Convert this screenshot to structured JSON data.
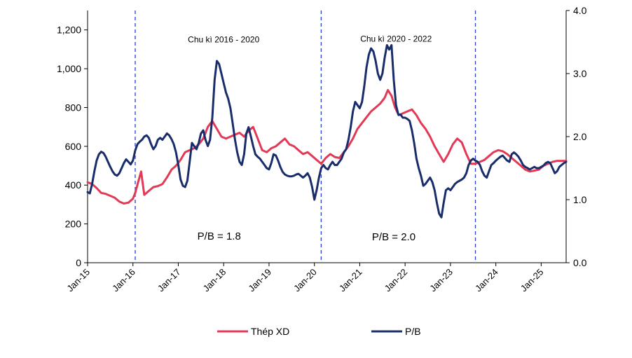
{
  "chart_data": {
    "type": "line",
    "title": "",
    "xlabel": "",
    "ylabel": "",
    "y_left": {
      "lim": [
        0,
        1300
      ],
      "ticks": [
        "0",
        "200",
        "400",
        "600",
        "800",
        "1,000",
        "1,200"
      ],
      "tick_values": [
        0,
        200,
        400,
        600,
        800,
        1000,
        1200
      ]
    },
    "y_right": {
      "lim": [
        0,
        4.0
      ],
      "ticks": [
        "0.0",
        "1.0",
        "2.0",
        "3.0",
        "4.0"
      ],
      "tick_values": [
        0,
        1,
        2,
        3,
        4
      ]
    },
    "x_range": [
      2015.0,
      2025.55
    ],
    "x_ticks": [
      {
        "label": "Jan-15",
        "value": 2015
      },
      {
        "label": "Jan-16",
        "value": 2016
      },
      {
        "label": "Jan-17",
        "value": 2017
      },
      {
        "label": "Jan-18",
        "value": 2018
      },
      {
        "label": "Jan-19",
        "value": 2019
      },
      {
        "label": "Jan-20",
        "value": 2020
      },
      {
        "label": "Jan-21",
        "value": 2021
      },
      {
        "label": "Jan-22",
        "value": 2022
      },
      {
        "label": "Jan-23",
        "value": 2023
      },
      {
        "label": "Jan-24",
        "value": 2024
      },
      {
        "label": "Jan-25",
        "value": 2025
      }
    ],
    "vlines": [
      {
        "name": "cycle-boundary-2016",
        "x": 2016.05
      },
      {
        "name": "cycle-boundary-2020",
        "x": 2020.15
      },
      {
        "name": "cycle-boundary-2023",
        "x": 2023.55
      }
    ],
    "annotations": [
      {
        "name": "cycle-label-2016-2020",
        "text": "Chu kì 2016 - 2020",
        "x": 2018.0,
        "y_left": 1135,
        "size": "small"
      },
      {
        "name": "cycle-label-2020-2022",
        "text": "Chu kì 2020 - 2022",
        "x": 2021.8,
        "y_left": 1140,
        "size": "small"
      },
      {
        "name": "pb-average-2016-2020",
        "text": "P/B = 1.8",
        "x": 2017.9,
        "y_left": 120,
        "size": "large"
      },
      {
        "name": "pb-average-2020-2022",
        "text": "P/B = 2.0",
        "x": 2021.75,
        "y_left": 115,
        "size": "large"
      }
    ],
    "series": [
      {
        "name": "Thép XD",
        "axis": "left",
        "color": "#e23a56",
        "x": [
          2015.0,
          2015.1,
          2015.2,
          2015.3,
          2015.4,
          2015.5,
          2015.6,
          2015.7,
          2015.8,
          2015.9,
          2016.0,
          2016.05,
          2016.12,
          2016.18,
          2016.25,
          2016.35,
          2016.45,
          2016.55,
          2016.65,
          2016.75,
          2016.85,
          2016.95,
          2017.05,
          2017.15,
          2017.25,
          2017.35,
          2017.45,
          2017.55,
          2017.65,
          2017.75,
          2017.85,
          2017.95,
          2018.05,
          2018.15,
          2018.25,
          2018.35,
          2018.45,
          2018.55,
          2018.65,
          2018.75,
          2018.85,
          2018.95,
          2019.05,
          2019.15,
          2019.25,
          2019.35,
          2019.45,
          2019.55,
          2019.65,
          2019.75,
          2019.85,
          2019.95,
          2020.05,
          2020.15,
          2020.25,
          2020.35,
          2020.45,
          2020.55,
          2020.65,
          2020.75,
          2020.85,
          2020.95,
          2021.05,
          2021.15,
          2021.25,
          2021.35,
          2021.45,
          2021.55,
          2021.62,
          2021.7,
          2021.78,
          2021.86,
          2021.95,
          2022.05,
          2022.15,
          2022.25,
          2022.35,
          2022.45,
          2022.55,
          2022.65,
          2022.75,
          2022.85,
          2022.95,
          2023.05,
          2023.15,
          2023.25,
          2023.35,
          2023.45,
          2023.55,
          2023.65,
          2023.75,
          2023.85,
          2023.95,
          2024.05,
          2024.15,
          2024.25,
          2024.35,
          2024.45,
          2024.55,
          2024.65,
          2024.75,
          2024.85,
          2024.95,
          2025.05,
          2025.15,
          2025.25,
          2025.35,
          2025.45,
          2025.55
        ],
        "values": [
          415,
          405,
          385,
          360,
          355,
          345,
          335,
          315,
          305,
          310,
          330,
          360,
          420,
          470,
          350,
          370,
          390,
          395,
          405,
          440,
          480,
          500,
          530,
          570,
          580,
          590,
          610,
          640,
          700,
          730,
          690,
          650,
          640,
          650,
          660,
          670,
          650,
          680,
          700,
          640,
          580,
          570,
          590,
          600,
          620,
          640,
          610,
          600,
          580,
          560,
          570,
          550,
          530,
          510,
          540,
          560,
          545,
          540,
          570,
          600,
          640,
          690,
          720,
          750,
          780,
          800,
          820,
          850,
          890,
          860,
          800,
          760,
          770,
          780,
          790,
          760,
          720,
          690,
          650,
          600,
          560,
          520,
          560,
          610,
          640,
          620,
          560,
          510,
          510,
          520,
          530,
          550,
          570,
          580,
          575,
          560,
          540,
          520,
          500,
          480,
          470,
          475,
          480,
          500,
          510,
          520,
          525,
          525,
          525
        ]
      },
      {
        "name": "P/B",
        "axis": "right",
        "color": "#1a2d6b",
        "x": [
          2015.0,
          2015.05,
          2015.1,
          2015.15,
          2015.2,
          2015.25,
          2015.3,
          2015.35,
          2015.4,
          2015.45,
          2015.5,
          2015.55,
          2015.6,
          2015.65,
          2015.7,
          2015.75,
          2015.8,
          2015.85,
          2015.9,
          2015.95,
          2016.0,
          2016.05,
          2016.1,
          2016.15,
          2016.2,
          2016.25,
          2016.3,
          2016.35,
          2016.4,
          2016.45,
          2016.5,
          2016.55,
          2016.6,
          2016.65,
          2016.7,
          2016.75,
          2016.8,
          2016.85,
          2016.9,
          2016.95,
          2017.0,
          2017.05,
          2017.1,
          2017.15,
          2017.2,
          2017.25,
          2017.3,
          2017.35,
          2017.4,
          2017.45,
          2017.5,
          2017.55,
          2017.6,
          2017.65,
          2017.7,
          2017.75,
          2017.8,
          2017.85,
          2017.9,
          2017.95,
          2018.0,
          2018.05,
          2018.1,
          2018.15,
          2018.2,
          2018.25,
          2018.3,
          2018.35,
          2018.4,
          2018.45,
          2018.5,
          2018.55,
          2018.6,
          2018.65,
          2018.7,
          2018.75,
          2018.8,
          2018.85,
          2018.9,
          2018.95,
          2019.0,
          2019.05,
          2019.1,
          2019.15,
          2019.2,
          2019.25,
          2019.3,
          2019.35,
          2019.4,
          2019.45,
          2019.5,
          2019.55,
          2019.6,
          2019.65,
          2019.7,
          2019.75,
          2019.8,
          2019.85,
          2019.9,
          2019.95,
          2020.0,
          2020.05,
          2020.1,
          2020.15,
          2020.2,
          2020.25,
          2020.3,
          2020.35,
          2020.4,
          2020.45,
          2020.5,
          2020.55,
          2020.6,
          2020.65,
          2020.7,
          2020.75,
          2020.8,
          2020.85,
          2020.9,
          2020.95,
          2021.0,
          2021.05,
          2021.1,
          2021.15,
          2021.2,
          2021.25,
          2021.3,
          2021.35,
          2021.4,
          2021.45,
          2021.5,
          2021.55,
          2021.6,
          2021.65,
          2021.7,
          2021.75,
          2021.8,
          2021.85,
          2021.9,
          2021.95,
          2022.0,
          2022.05,
          2022.1,
          2022.15,
          2022.2,
          2022.25,
          2022.3,
          2022.35,
          2022.4,
          2022.45,
          2022.5,
          2022.55,
          2022.6,
          2022.65,
          2022.7,
          2022.75,
          2022.8,
          2022.85,
          2022.9,
          2022.95,
          2023.0,
          2023.05,
          2023.1,
          2023.15,
          2023.2,
          2023.25,
          2023.3,
          2023.35,
          2023.4,
          2023.45,
          2023.5,
          2023.55,
          2023.6,
          2023.65,
          2023.7,
          2023.75,
          2023.8,
          2023.85,
          2023.9,
          2023.95,
          2024.0,
          2024.05,
          2024.1,
          2024.15,
          2024.2,
          2024.25,
          2024.3,
          2024.35,
          2024.4,
          2024.45,
          2024.5,
          2024.55,
          2024.6,
          2024.65,
          2024.7,
          2024.75,
          2024.8,
          2024.85,
          2024.9,
          2024.95,
          2025.0,
          2025.05,
          2025.1,
          2025.15,
          2025.2,
          2025.25,
          2025.3,
          2025.35,
          2025.4,
          2025.45,
          2025.5,
          2025.55
        ],
        "values": [
          1.12,
          1.1,
          1.25,
          1.45,
          1.62,
          1.72,
          1.76,
          1.74,
          1.68,
          1.6,
          1.52,
          1.45,
          1.4,
          1.38,
          1.42,
          1.5,
          1.58,
          1.64,
          1.6,
          1.56,
          1.62,
          1.78,
          1.88,
          1.92,
          1.95,
          2.0,
          2.02,
          1.98,
          1.88,
          1.8,
          1.85,
          1.95,
          1.98,
          1.95,
          2.0,
          2.05,
          2.02,
          1.96,
          1.88,
          1.75,
          1.55,
          1.32,
          1.22,
          1.2,
          1.3,
          1.6,
          1.9,
          1.85,
          1.8,
          1.9,
          2.05,
          2.1,
          1.95,
          1.85,
          1.95,
          2.3,
          2.9,
          3.2,
          3.15,
          3.0,
          2.85,
          2.7,
          2.6,
          2.45,
          2.2,
          1.95,
          1.75,
          1.6,
          1.55,
          1.72,
          2.05,
          2.15,
          2.0,
          1.85,
          1.72,
          1.68,
          1.65,
          1.6,
          1.55,
          1.5,
          1.48,
          1.58,
          1.72,
          1.7,
          1.62,
          1.52,
          1.44,
          1.4,
          1.38,
          1.37,
          1.37,
          1.38,
          1.4,
          1.41,
          1.38,
          1.35,
          1.38,
          1.42,
          1.35,
          1.2,
          1.0,
          1.15,
          1.35,
          1.5,
          1.55,
          1.5,
          1.48,
          1.55,
          1.6,
          1.55,
          1.55,
          1.6,
          1.65,
          1.75,
          1.8,
          1.95,
          2.15,
          2.4,
          2.55,
          2.5,
          2.45,
          2.55,
          2.8,
          3.1,
          3.3,
          3.4,
          3.35,
          3.2,
          3.0,
          2.9,
          3.0,
          3.25,
          3.45,
          3.38,
          3.45,
          2.9,
          2.5,
          2.35,
          2.35,
          2.3,
          2.3,
          2.28,
          2.25,
          2.1,
          1.9,
          1.65,
          1.5,
          1.38,
          1.22,
          1.25,
          1.3,
          1.35,
          1.28,
          1.15,
          0.95,
          0.78,
          0.72,
          0.95,
          1.15,
          1.18,
          1.15,
          1.2,
          1.25,
          1.28,
          1.3,
          1.32,
          1.35,
          1.42,
          1.55,
          1.62,
          1.65,
          1.62,
          1.6,
          1.55,
          1.45,
          1.38,
          1.35,
          1.45,
          1.55,
          1.58,
          1.62,
          1.65,
          1.68,
          1.7,
          1.66,
          1.62,
          1.6,
          1.72,
          1.75,
          1.72,
          1.68,
          1.62,
          1.55,
          1.52,
          1.5,
          1.48,
          1.5,
          1.52,
          1.5,
          1.5,
          1.52,
          1.54,
          1.58,
          1.6,
          1.58,
          1.5,
          1.42,
          1.45,
          1.52,
          1.55,
          1.58,
          1.6
        ]
      }
    ],
    "legend": [
      {
        "label": "Thép XD",
        "color": "#e23a56"
      },
      {
        "label": "P/B",
        "color": "#1a2d6b"
      }
    ],
    "legend_position": "bottom"
  }
}
